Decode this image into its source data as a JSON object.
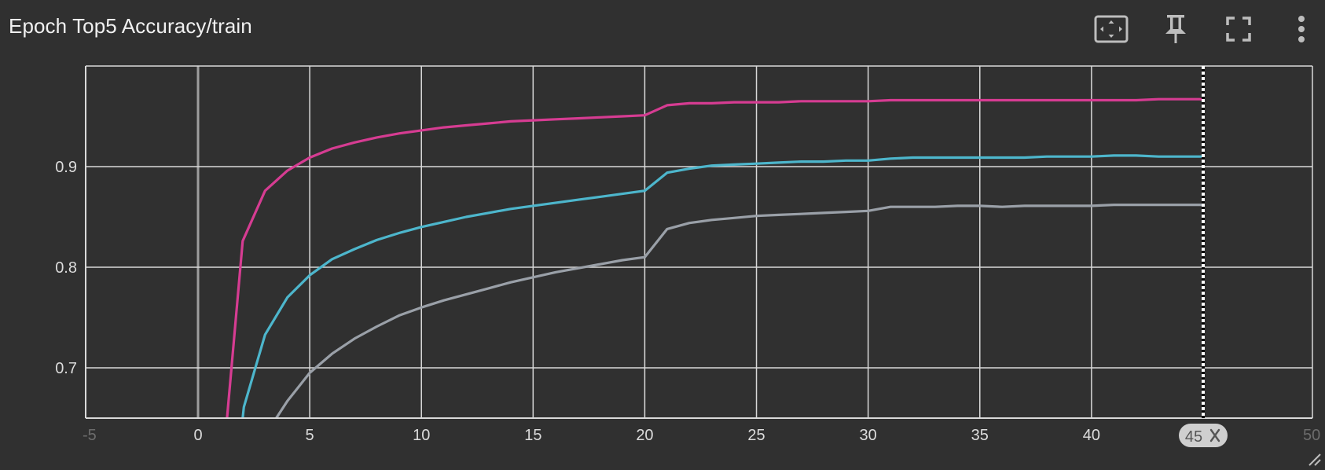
{
  "header": {
    "title": "Epoch Top5 Accuracy/train"
  },
  "toolbar": {
    "fit_icon": "fit-domain-icon",
    "pin_icon": "pin-icon",
    "fullscreen_icon": "fullscreen-icon",
    "more_icon": "more-vert-icon"
  },
  "cursor": {
    "label": "45",
    "close_icon": "close-icon",
    "x": 45
  },
  "colors": {
    "background": "#303030",
    "grid": "#d9d9d9",
    "zero_line": "#9e9e9e",
    "series_magenta": "#d63c92",
    "series_cyan": "#4db6cc",
    "series_gray": "#9aa0a8"
  },
  "chart_data": {
    "type": "line",
    "title": "Epoch Top5 Accuracy/train",
    "xlabel": "",
    "ylabel": "",
    "xlim": [
      -5,
      50
    ],
    "ylim": [
      0.65,
      1.0
    ],
    "grid": true,
    "x_ticks": [
      -5,
      0,
      5,
      10,
      15,
      20,
      25,
      30,
      35,
      40,
      45,
      50
    ],
    "x_tick_labels": [
      "-5",
      "0",
      "5",
      "10",
      "15",
      "20",
      "25",
      "30",
      "35",
      "40",
      "45",
      "50"
    ],
    "y_ticks": [
      0.7,
      0.8,
      0.9
    ],
    "y_tick_labels": [
      "0.7",
      "0.8",
      "0.9"
    ],
    "series": [
      {
        "color": "#d63c92",
        "points": [
          [
            1.3,
            0.65
          ],
          [
            2,
            0.826
          ],
          [
            3,
            0.876
          ],
          [
            4,
            0.896
          ],
          [
            5,
            0.909
          ],
          [
            6,
            0.918
          ],
          [
            7,
            0.924
          ],
          [
            8,
            0.929
          ],
          [
            9,
            0.933
          ],
          [
            10,
            0.936
          ],
          [
            11,
            0.939
          ],
          [
            12,
            0.941
          ],
          [
            13,
            0.943
          ],
          [
            14,
            0.945
          ],
          [
            15,
            0.946
          ],
          [
            16,
            0.947
          ],
          [
            17,
            0.948
          ],
          [
            18,
            0.949
          ],
          [
            19,
            0.95
          ],
          [
            20,
            0.951
          ],
          [
            21,
            0.961
          ],
          [
            22,
            0.963
          ],
          [
            23,
            0.963
          ],
          [
            24,
            0.964
          ],
          [
            25,
            0.964
          ],
          [
            26,
            0.964
          ],
          [
            27,
            0.965
          ],
          [
            28,
            0.965
          ],
          [
            29,
            0.965
          ],
          [
            30,
            0.965
          ],
          [
            31,
            0.966
          ],
          [
            32,
            0.966
          ],
          [
            33,
            0.966
          ],
          [
            34,
            0.966
          ],
          [
            35,
            0.966
          ],
          [
            36,
            0.966
          ],
          [
            37,
            0.966
          ],
          [
            38,
            0.966
          ],
          [
            39,
            0.966
          ],
          [
            40,
            0.966
          ],
          [
            41,
            0.966
          ],
          [
            42,
            0.966
          ],
          [
            43,
            0.967
          ],
          [
            44,
            0.967
          ],
          [
            45,
            0.967
          ]
        ]
      },
      {
        "color": "#4db6cc",
        "points": [
          [
            2,
            0.65
          ],
          [
            2.05,
            0.661
          ],
          [
            3,
            0.733
          ],
          [
            4,
            0.77
          ],
          [
            5,
            0.792
          ],
          [
            6,
            0.808
          ],
          [
            7,
            0.818
          ],
          [
            8,
            0.827
          ],
          [
            9,
            0.834
          ],
          [
            10,
            0.84
          ],
          [
            11,
            0.845
          ],
          [
            12,
            0.85
          ],
          [
            13,
            0.854
          ],
          [
            14,
            0.858
          ],
          [
            15,
            0.861
          ],
          [
            16,
            0.864
          ],
          [
            17,
            0.867
          ],
          [
            18,
            0.87
          ],
          [
            19,
            0.873
          ],
          [
            20,
            0.876
          ],
          [
            21,
            0.894
          ],
          [
            22,
            0.898
          ],
          [
            23,
            0.901
          ],
          [
            24,
            0.902
          ],
          [
            25,
            0.903
          ],
          [
            26,
            0.904
          ],
          [
            27,
            0.905
          ],
          [
            28,
            0.905
          ],
          [
            29,
            0.906
          ],
          [
            30,
            0.906
          ],
          [
            31,
            0.908
          ],
          [
            32,
            0.909
          ],
          [
            33,
            0.909
          ],
          [
            34,
            0.909
          ],
          [
            35,
            0.909
          ],
          [
            36,
            0.909
          ],
          [
            37,
            0.909
          ],
          [
            38,
            0.91
          ],
          [
            39,
            0.91
          ],
          [
            40,
            0.91
          ],
          [
            41,
            0.911
          ],
          [
            42,
            0.911
          ],
          [
            43,
            0.91
          ],
          [
            44,
            0.91
          ],
          [
            45,
            0.91
          ]
        ]
      },
      {
        "color": "#9aa0a8",
        "points": [
          [
            3.5,
            0.65
          ],
          [
            4,
            0.667
          ],
          [
            5,
            0.695
          ],
          [
            6,
            0.714
          ],
          [
            7,
            0.729
          ],
          [
            8,
            0.741
          ],
          [
            9,
            0.752
          ],
          [
            10,
            0.76
          ],
          [
            11,
            0.767
          ],
          [
            12,
            0.773
          ],
          [
            13,
            0.779
          ],
          [
            14,
            0.785
          ],
          [
            15,
            0.79
          ],
          [
            16,
            0.795
          ],
          [
            17,
            0.799
          ],
          [
            18,
            0.803
          ],
          [
            19,
            0.807
          ],
          [
            20,
            0.81
          ],
          [
            21,
            0.838
          ],
          [
            22,
            0.844
          ],
          [
            23,
            0.847
          ],
          [
            24,
            0.849
          ],
          [
            25,
            0.851
          ],
          [
            26,
            0.852
          ],
          [
            27,
            0.853
          ],
          [
            28,
            0.854
          ],
          [
            29,
            0.855
          ],
          [
            30,
            0.856
          ],
          [
            31,
            0.86
          ],
          [
            32,
            0.86
          ],
          [
            33,
            0.86
          ],
          [
            34,
            0.861
          ],
          [
            35,
            0.861
          ],
          [
            36,
            0.86
          ],
          [
            37,
            0.861
          ],
          [
            38,
            0.861
          ],
          [
            39,
            0.861
          ],
          [
            40,
            0.861
          ],
          [
            41,
            0.862
          ],
          [
            42,
            0.862
          ],
          [
            43,
            0.862
          ],
          [
            44,
            0.862
          ],
          [
            45,
            0.862
          ]
        ]
      }
    ]
  }
}
